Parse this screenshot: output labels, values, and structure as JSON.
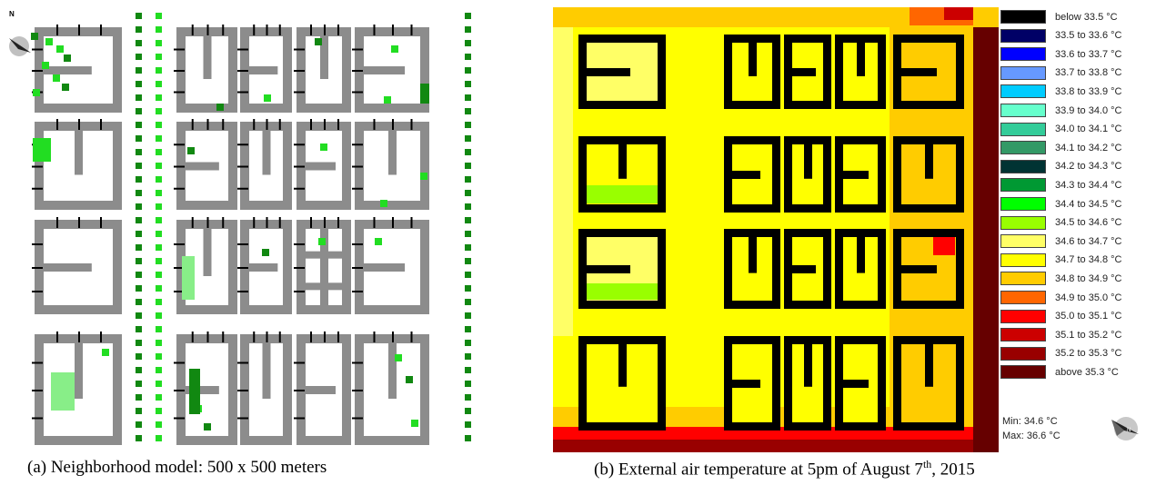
{
  "panel_a": {
    "caption": "(a) Neighborhood model: 500 x 500 meters",
    "north_label": "N",
    "colors": {
      "building": "#8c8c8c",
      "open_ground": "#ffffff",
      "wall_edge": "#000000",
      "tree_bright": "#22dd22",
      "tree_dark": "#118811",
      "tree_light": "#88ee88",
      "tree_row": "#118811"
    }
  },
  "panel_b": {
    "caption": "(b) External air temperature at 5pm of August 7",
    "caption_sup": "th",
    "caption_tail": ", 2015",
    "min_label": "Min: 34.6 °C",
    "max_label": "Max: 36.6 °C",
    "colors": {
      "building": "#000000",
      "warm_base": "#ffff00"
    }
  },
  "legend": [
    {
      "label": "below 33.5 °C",
      "color": "#000000"
    },
    {
      "label": "33.5 to 33.6 °C",
      "color": "#000066"
    },
    {
      "label": "33.6 to 33.7 °C",
      "color": "#0000ff"
    },
    {
      "label": "33.7 to 33.8 °C",
      "color": "#6699ff"
    },
    {
      "label": "33.8 to 33.9 °C",
      "color": "#00ccff"
    },
    {
      "label": "33.9 to 34.0 °C",
      "color": "#66ffcc"
    },
    {
      "label": "34.0 to 34.1 °C",
      "color": "#33cc99"
    },
    {
      "label": "34.1 to 34.2 °C",
      "color": "#339966"
    },
    {
      "label": "34.2 to 34.3 °C",
      "color": "#003333"
    },
    {
      "label": "34.3 to 34.4 °C",
      "color": "#009933"
    },
    {
      "label": "34.4 to 34.5 °C",
      "color": "#00ff00"
    },
    {
      "label": "34.5 to 34.6 °C",
      "color": "#99ff00"
    },
    {
      "label": "34.6 to 34.7 °C",
      "color": "#ffff66"
    },
    {
      "label": "34.7 to 34.8 °C",
      "color": "#ffff00"
    },
    {
      "label": "34.8 to 34.9 °C",
      "color": "#ffcc00"
    },
    {
      "label": "34.9 to 35.0 °C",
      "color": "#ff6600"
    },
    {
      "label": "35.0 to 35.1 °C",
      "color": "#ff0000"
    },
    {
      "label": "35.1 to 35.2 °C",
      "color": "#cc0000"
    },
    {
      "label": "35.2 to 35.3 °C",
      "color": "#990000"
    },
    {
      "label": "above 35.3 °C",
      "color": "#660000"
    }
  ]
}
